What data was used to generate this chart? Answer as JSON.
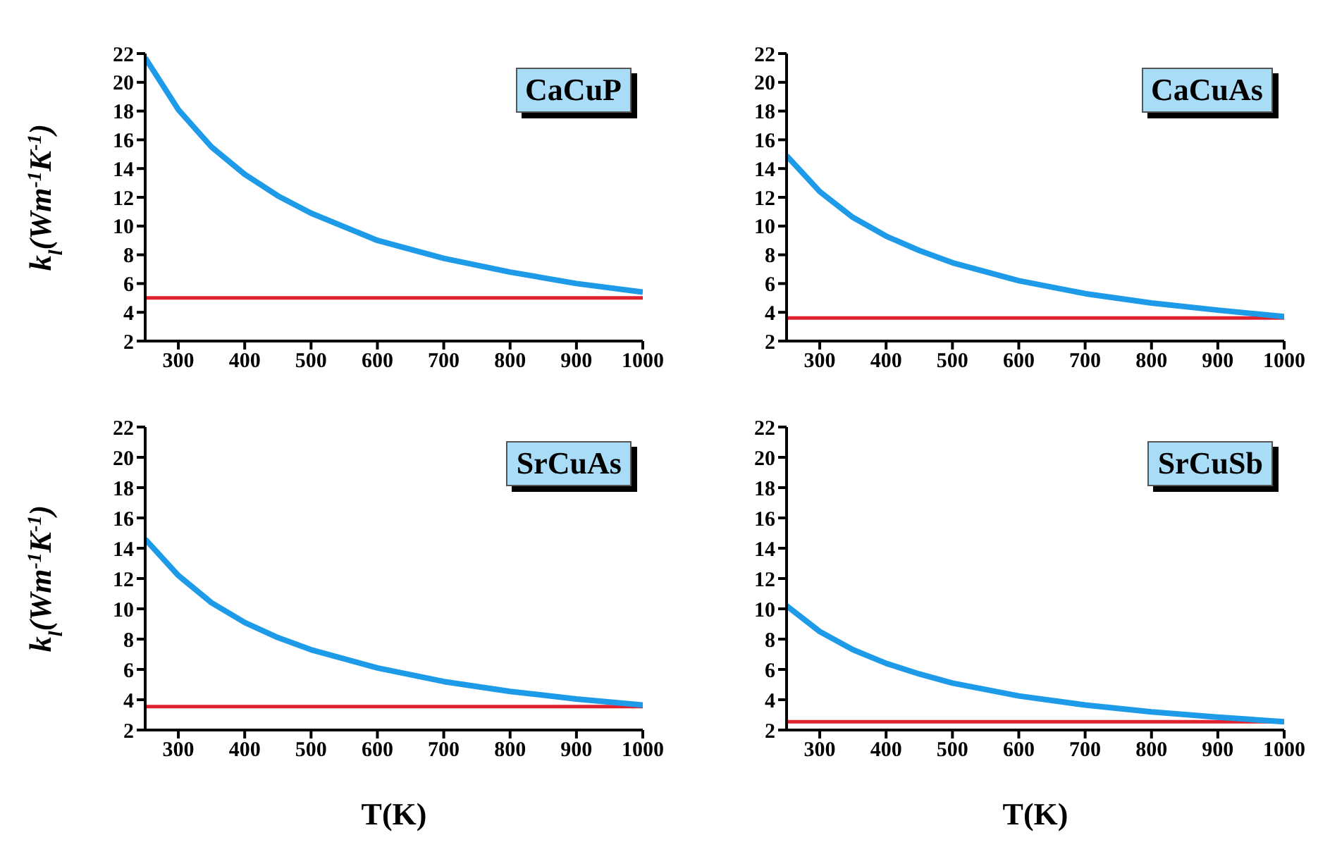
{
  "chart_data": [
    {
      "type": "line",
      "title": "CaCuP",
      "ylabel": "k$_{l}$(Wm$^{-1}$K$^{-1}$)",
      "x": [
        250,
        300,
        350,
        400,
        450,
        500,
        600,
        700,
        800,
        900,
        1000
      ],
      "xlim": [
        250,
        1000
      ],
      "xticks": [
        300,
        400,
        500,
        600,
        700,
        800,
        900,
        1000
      ],
      "ylim": [
        2,
        22
      ],
      "yticks": [
        2,
        4,
        6,
        8,
        10,
        12,
        14,
        16,
        18,
        20,
        22
      ],
      "grid": false,
      "legend": false,
      "marker": "none",
      "series": [
        {
          "color": "#1e9be8",
          "values": [
            21.7,
            18.1,
            15.5,
            13.6,
            12.1,
            10.9,
            9.0,
            7.75,
            6.8,
            6.0,
            5.4
          ]
        }
      ],
      "ref_lines": [
        {
          "axis": "y",
          "value": 5.0,
          "color": "#e0212f"
        }
      ]
    },
    {
      "type": "line",
      "title": "CaCuAs",
      "x": [
        250,
        300,
        350,
        400,
        450,
        500,
        600,
        700,
        800,
        900,
        1000
      ],
      "xlim": [
        250,
        1000
      ],
      "xticks": [
        300,
        400,
        500,
        600,
        700,
        800,
        900,
        1000
      ],
      "ylim": [
        2,
        22
      ],
      "yticks": [
        2,
        4,
        6,
        8,
        10,
        12,
        14,
        16,
        18,
        20,
        22
      ],
      "grid": false,
      "legend": false,
      "marker": "none",
      "series": [
        {
          "color": "#1e9be8",
          "values": [
            14.9,
            12.4,
            10.6,
            9.3,
            8.3,
            7.45,
            6.2,
            5.3,
            4.65,
            4.15,
            3.7
          ]
        }
      ],
      "ref_lines": [
        {
          "axis": "y",
          "value": 3.6,
          "color": "#e0212f"
        }
      ]
    },
    {
      "type": "line",
      "title": "SrCuAs",
      "xlabel": "T(K)",
      "ylabel": "k$_{l}$(Wm$^{-1}$K$^{-1}$)",
      "x": [
        250,
        300,
        350,
        400,
        450,
        500,
        600,
        700,
        800,
        900,
        1000
      ],
      "xlim": [
        250,
        1000
      ],
      "xticks": [
        300,
        400,
        500,
        600,
        700,
        800,
        900,
        1000
      ],
      "ylim": [
        2,
        22
      ],
      "yticks": [
        2,
        4,
        6,
        8,
        10,
        12,
        14,
        16,
        18,
        20,
        22
      ],
      "grid": false,
      "legend": false,
      "marker": "none",
      "series": [
        {
          "color": "#1e9be8",
          "values": [
            14.6,
            12.2,
            10.4,
            9.1,
            8.1,
            7.3,
            6.1,
            5.2,
            4.55,
            4.05,
            3.65
          ]
        }
      ],
      "ref_lines": [
        {
          "axis": "y",
          "value": 3.55,
          "color": "#e0212f"
        }
      ]
    },
    {
      "type": "line",
      "title": "SrCuSb",
      "xlabel": "T(K)",
      "x": [
        250,
        300,
        350,
        400,
        450,
        500,
        600,
        700,
        800,
        900,
        1000
      ],
      "xlim": [
        250,
        1000
      ],
      "xticks": [
        300,
        400,
        500,
        600,
        700,
        800,
        900,
        1000
      ],
      "ylim": [
        2,
        22
      ],
      "yticks": [
        2,
        4,
        6,
        8,
        10,
        12,
        14,
        16,
        18,
        20,
        22
      ],
      "grid": false,
      "legend": false,
      "marker": "none",
      "series": [
        {
          "color": "#1e9be8",
          "values": [
            10.2,
            8.5,
            7.3,
            6.4,
            5.7,
            5.1,
            4.25,
            3.65,
            3.2,
            2.85,
            2.55
          ]
        }
      ],
      "ref_lines": [
        {
          "axis": "y",
          "value": 2.55,
          "color": "#e0212f"
        }
      ]
    }
  ]
}
